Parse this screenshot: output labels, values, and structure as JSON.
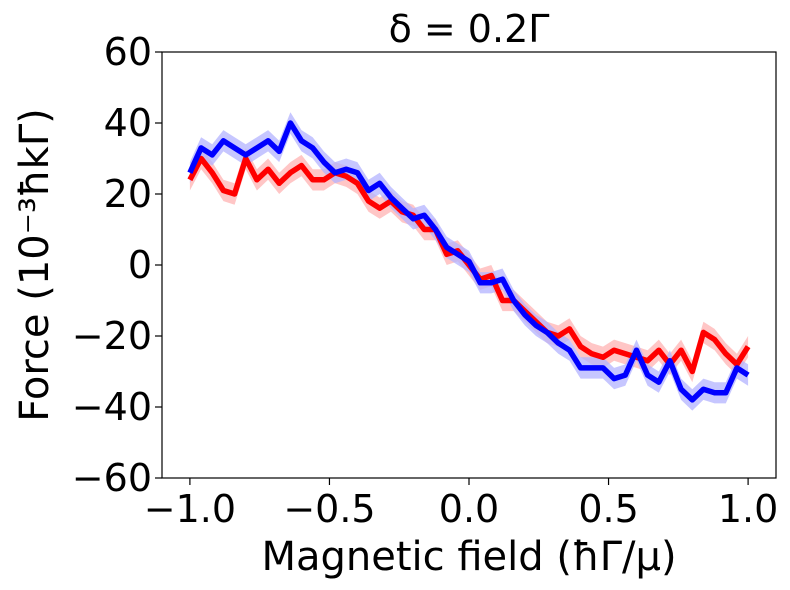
{
  "chart_data": {
    "type": "line",
    "title": "δ = 0.2Γ",
    "xlabel": "Magnetic field (ħΓ/μ)",
    "ylabel": "Force (10⁻³ħkΓ)",
    "xlim": [
      -1.1,
      1.1
    ],
    "ylim": [
      -60,
      60
    ],
    "xticks": [
      -1.0,
      -0.5,
      0.0,
      0.5,
      1.0
    ],
    "xtick_labels": [
      "−1.0",
      "−0.5",
      "0.0",
      "0.5",
      "1.0"
    ],
    "yticks": [
      -60,
      -40,
      -20,
      0,
      20,
      40,
      60
    ],
    "ytick_labels": [
      "−60",
      "−40",
      "−20",
      "0",
      "20",
      "40",
      "60"
    ],
    "grid": false,
    "band_halfwidth": 3,
    "x": [
      -1.0,
      -0.96,
      -0.92,
      -0.88,
      -0.84,
      -0.8,
      -0.76,
      -0.72,
      -0.68,
      -0.64,
      -0.6,
      -0.56,
      -0.52,
      -0.48,
      -0.44,
      -0.4,
      -0.36,
      -0.32,
      -0.28,
      -0.24,
      -0.2,
      -0.16,
      -0.12,
      -0.08,
      -0.04,
      0.0,
      0.04,
      0.08,
      0.12,
      0.16,
      0.2,
      0.24,
      0.28,
      0.32,
      0.36,
      0.4,
      0.44,
      0.48,
      0.52,
      0.56,
      0.6,
      0.64,
      0.68,
      0.72,
      0.76,
      0.8,
      0.84,
      0.88,
      0.92,
      0.96,
      1.0
    ],
    "series": [
      {
        "color": "#ff0000",
        "band_color": "#ffb3b3",
        "values": [
          24,
          30,
          26,
          21,
          20,
          30,
          24,
          27,
          23,
          26,
          28,
          24,
          24,
          26,
          25,
          23,
          18,
          16,
          18,
          15,
          14,
          10,
          10,
          3,
          4,
          0,
          -4,
          -3,
          -10,
          -10,
          -13,
          -16,
          -19,
          -20,
          -18,
          -23,
          -25,
          -26,
          -24,
          -25,
          -26,
          -27,
          -24,
          -28,
          -24,
          -30,
          -19,
          -21,
          -25,
          -28,
          -23
        ]
      },
      {
        "color": "#0000ff",
        "band_color": "#b3b3ff",
        "values": [
          26,
          33,
          31,
          35,
          33,
          31,
          33,
          35,
          32,
          40,
          35,
          33,
          29,
          26,
          27,
          26,
          21,
          23,
          19,
          16,
          13,
          14,
          10,
          5,
          3,
          1,
          -5,
          -5,
          -4,
          -10,
          -14,
          -17,
          -19,
          -22,
          -24,
          -29,
          -29,
          -29,
          -32,
          -31,
          -24,
          -31,
          -33,
          -27,
          -35,
          -38,
          -35,
          -36,
          -36,
          -29,
          -31
        ]
      }
    ]
  }
}
